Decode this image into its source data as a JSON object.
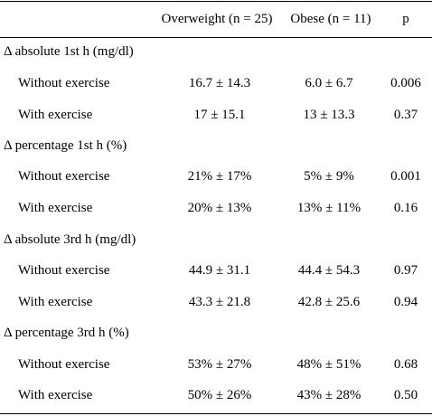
{
  "header": {
    "col_label": "",
    "col_overweight": "Overweight (n = 25)",
    "col_obese": "Obese (n = 11)",
    "col_p": "p"
  },
  "sections": [
    {
      "title": "Δ absolute 1st h (mg/dl)",
      "rows": [
        {
          "label": "Without exercise",
          "overweight": "16.7 ± 14.3",
          "obese": "6.0 ± 6.7",
          "p": "0.006"
        },
        {
          "label": "With exercise",
          "overweight": "17 ± 15.1",
          "obese": "13 ± 13.3",
          "p": "0.37"
        }
      ]
    },
    {
      "title": "Δ percentage 1st h (%)",
      "rows": [
        {
          "label": "Without exercise",
          "overweight": "21% ± 17%",
          "obese": "5% ± 9%",
          "p": "0.001"
        },
        {
          "label": "With exercise",
          "overweight": "20% ± 13%",
          "obese": "13% ± 11%",
          "p": "0.16"
        }
      ]
    },
    {
      "title": "Δ absolute 3rd h (mg/dl)",
      "rows": [
        {
          "label": "Without exercise",
          "overweight": "44.9 ± 31.1",
          "obese": "44.4 ± 54.3",
          "p": "0.97"
        },
        {
          "label": "With exercise",
          "overweight": "43.3 ± 21.8",
          "obese": "42.8 ± 25.6",
          "p": "0.94"
        }
      ]
    },
    {
      "title": "Δ percentage 3rd h (%)",
      "rows": [
        {
          "label": "Without exercise",
          "overweight": "53% ± 27%",
          "obese": "48% ± 51%",
          "p": "0.68"
        },
        {
          "label": "With exercise",
          "overweight": "50% ± 26%",
          "obese": "43% ± 28%",
          "p": "0.50"
        }
      ]
    }
  ]
}
